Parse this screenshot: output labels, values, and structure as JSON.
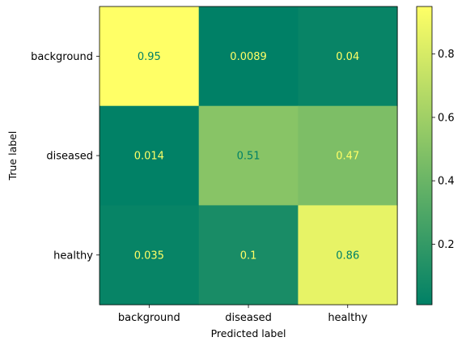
{
  "chart_data": {
    "type": "heatmap",
    "x_categories": [
      "background",
      "diseased",
      "healthy"
    ],
    "y_categories": [
      "background",
      "diseased",
      "healthy"
    ],
    "values": [
      [
        0.95,
        0.0089,
        0.04
      ],
      [
        0.014,
        0.51,
        0.47
      ],
      [
        0.035,
        0.1,
        0.86
      ]
    ],
    "value_labels": [
      [
        "0.95",
        "0.0089",
        "0.04"
      ],
      [
        "0.014",
        "0.51",
        "0.47"
      ],
      [
        "0.035",
        "0.1",
        "0.86"
      ]
    ],
    "xlabel": "Predicted label",
    "ylabel": "True label",
    "colormap": "summer",
    "colormap_start": "#008066",
    "colormap_end": "#ffff66",
    "text_color_light": "#ffff66",
    "text_color_dark": "#008066",
    "colorbar": {
      "ticks": [
        0.2,
        0.4,
        0.6,
        0.8
      ],
      "tick_labels": [
        "0.2",
        "0.4",
        "0.6",
        "0.8"
      ]
    }
  }
}
